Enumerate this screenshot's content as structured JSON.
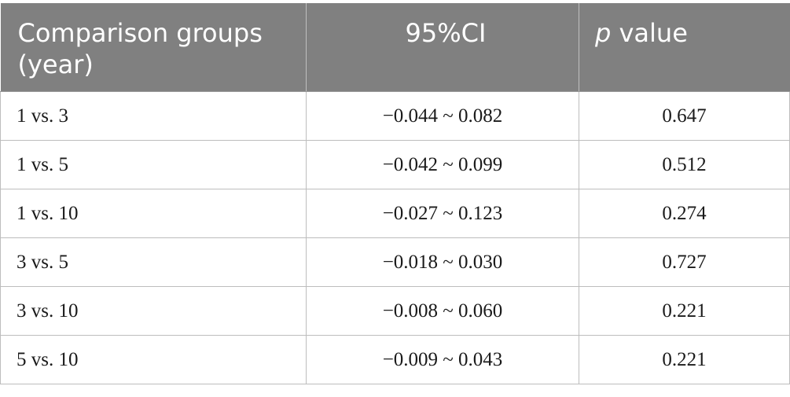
{
  "table": {
    "headers": {
      "groups": "Comparison groups (year)",
      "ci": "95%CI",
      "p_italic": "p",
      "p_rest": " value"
    },
    "rows": [
      {
        "groups": "1 vs. 3",
        "ci": "−0.044 ~ 0.082",
        "p": "0.647"
      },
      {
        "groups": "1 vs. 5",
        "ci": "−0.042 ~ 0.099",
        "p": "0.512"
      },
      {
        "groups": "1 vs. 10",
        "ci": "−0.027 ~ 0.123",
        "p": "0.274"
      },
      {
        "groups": "3 vs. 5",
        "ci": "−0.018 ~ 0.030",
        "p": "0.727"
      },
      {
        "groups": "3 vs. 10",
        "ci": "−0.008 ~ 0.060",
        "p": "0.221"
      },
      {
        "groups": "5 vs. 10",
        "ci": "−0.009 ~ 0.043",
        "p": "0.221"
      }
    ],
    "header_bg_color": "#808080",
    "header_text_color": "#ffffff",
    "grid_color": "#bdbdbd"
  }
}
